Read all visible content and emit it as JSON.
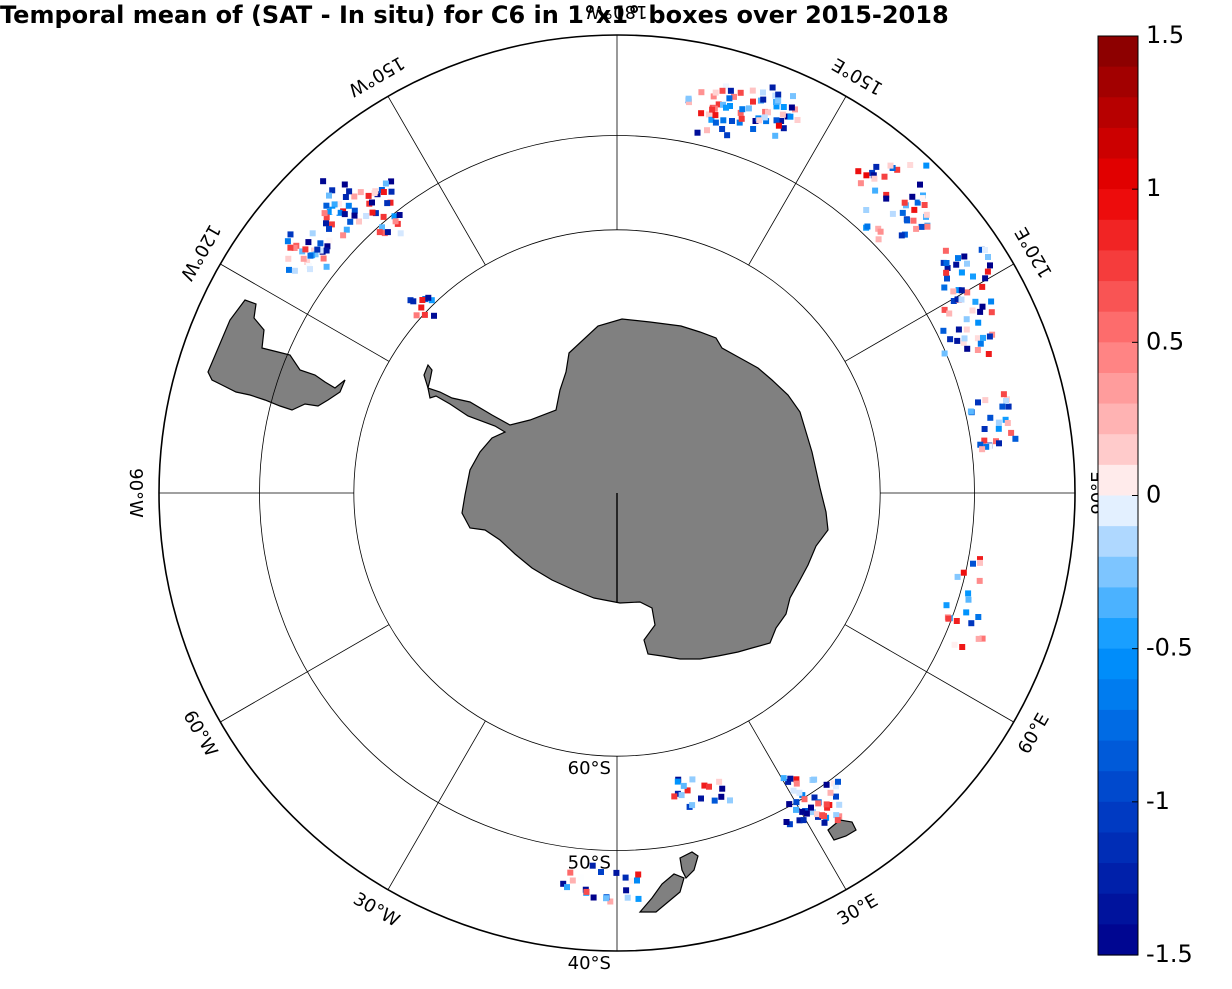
{
  "title": "Temporal mean of (SAT - In situ) for C6 in 1°x1° boxes over 2015-2018",
  "colorbar": {
    "ticks": [
      "1.5",
      "1",
      "0.5",
      "0",
      "-0.5",
      "-1",
      "-1.5"
    ],
    "min": -1.5,
    "max": 1.5,
    "levels": 30,
    "colormap": "blue-white-red"
  },
  "longitude_labels": [
    {
      "text": "30°W",
      "lon": -30
    },
    {
      "text": "30°E",
      "lon": 30
    },
    {
      "text": "60°W",
      "lon": -60
    },
    {
      "text": "60°E",
      "lon": 60
    },
    {
      "text": "90°W",
      "lon": -90
    },
    {
      "text": "90°E",
      "lon": 90
    },
    {
      "text": "120°W",
      "lon": -120
    },
    {
      "text": "120°E",
      "lon": 120
    },
    {
      "text": "150°W",
      "lon": -150
    },
    {
      "text": "150°E",
      "lon": 150
    },
    {
      "text": "180°W",
      "lon": 180
    }
  ],
  "latitude_labels": [
    {
      "text": "60°S",
      "lat": -60
    },
    {
      "text": "50°S",
      "lat": -50
    },
    {
      "text": "40°S",
      "lat": -40
    }
  ],
  "projection": "south polar stereographic",
  "colors": {
    "land": "#808080",
    "coastline": "#000000",
    "grid": "#000000"
  }
}
